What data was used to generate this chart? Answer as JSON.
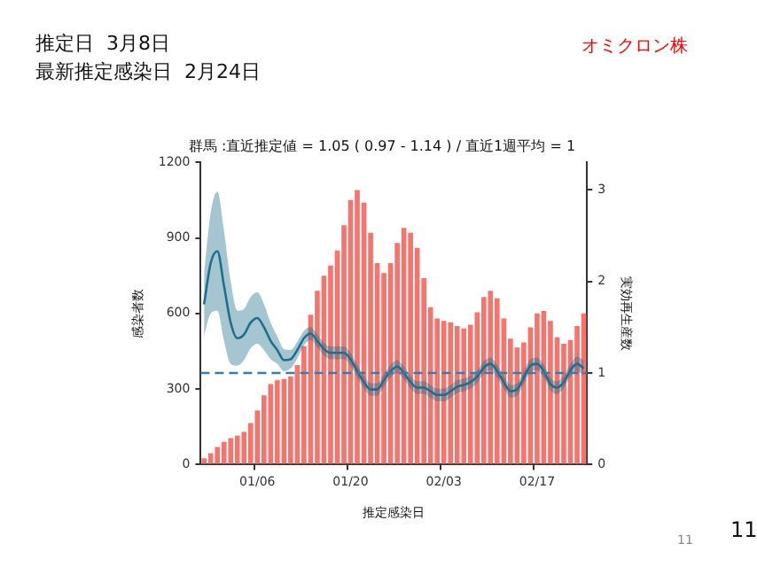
{
  "chart_data": {
    "type": "bar",
    "title": "群馬 :直近推定値 = 1.05 ( 0.97 - 1.14 ) / 直近1週平均 = 1",
    "xlabel": "推定感染日",
    "ylabel": "感染者数",
    "y2label": "実効再生産数",
    "annotations": [
      "推定日  3月8日",
      "最新推定感染日  2月24日",
      "オミクロン株",
      "11",
      "11"
    ],
    "categories": [
      null,
      null,
      null,
      null,
      null,
      null,
      null,
      null,
      "01/06",
      null,
      null,
      null,
      null,
      null,
      null,
      null,
      null,
      null,
      null,
      null,
      null,
      null,
      "01/20",
      null,
      null,
      null,
      null,
      null,
      null,
      null,
      null,
      null,
      null,
      null,
      null,
      null,
      "02/03",
      null,
      null,
      null,
      null,
      null,
      null,
      null,
      null,
      null,
      null,
      null,
      null,
      null,
      "02/17",
      null,
      null,
      null,
      null,
      null,
      null,
      null
    ],
    "series": [
      {
        "color": "#f4756e",
        "values": [
          25,
          45,
          70,
          90,
          105,
          115,
          130,
          165,
          215,
          275,
          320,
          335,
          340,
          350,
          395,
          470,
          595,
          690,
          750,
          790,
          850,
          950,
          1050,
          1090,
          1040,
          920,
          800,
          760,
          800,
          880,
          940,
          920,
          860,
          740,
          625,
          580,
          570,
          565,
          550,
          540,
          555,
          605,
          665,
          690,
          660,
          580,
          500,
          465,
          485,
          545,
          600,
          610,
          570,
          505,
          480,
          495,
          550,
          600
        ]
      },
      {
        "type": "line",
        "axis": "y2",
        "color": "#1f6e8c",
        "values": [
          1.75,
          2.2,
          2.33,
          1.95,
          1.55,
          1.38,
          1.42,
          1.55,
          1.6,
          1.5,
          1.35,
          1.25,
          1.14,
          1.15,
          1.25,
          1.38,
          1.43,
          1.35,
          1.26,
          1.22,
          1.22,
          1.22,
          1.15,
          1.02,
          0.9,
          0.82,
          0.82,
          0.92,
          1.02,
          1.07,
          1.0,
          0.9,
          0.84,
          0.84,
          0.8,
          0.76,
          0.76,
          0.8,
          0.85,
          0.87,
          0.9,
          0.96,
          1.06,
          1.1,
          1.02,
          0.9,
          0.8,
          0.82,
          0.95,
          1.08,
          1.1,
          1.02,
          0.88,
          0.84,
          0.9,
          1.03,
          1.1,
          1.05
        ],
        "lower": [
          1.4,
          1.65,
          1.68,
          1.35,
          1.1,
          1.08,
          1.14,
          1.27,
          1.32,
          1.25,
          1.15,
          1.1,
          1.02,
          1.05,
          1.16,
          1.3,
          1.36,
          1.28,
          1.19,
          1.15,
          1.15,
          1.15,
          1.08,
          0.95,
          0.83,
          0.75,
          0.75,
          0.85,
          0.95,
          1.0,
          0.93,
          0.83,
          0.77,
          0.77,
          0.73,
          0.69,
          0.69,
          0.73,
          0.78,
          0.8,
          0.83,
          0.89,
          0.99,
          1.03,
          0.95,
          0.83,
          0.73,
          0.75,
          0.88,
          1.01,
          1.03,
          0.95,
          0.81,
          0.77,
          0.83,
          0.96,
          1.02,
          0.97
        ],
        "upper": [
          2.1,
          2.75,
          2.98,
          2.55,
          2.0,
          1.68,
          1.7,
          1.83,
          1.88,
          1.75,
          1.55,
          1.4,
          1.26,
          1.25,
          1.34,
          1.46,
          1.5,
          1.42,
          1.33,
          1.29,
          1.29,
          1.29,
          1.22,
          1.09,
          0.97,
          0.89,
          0.89,
          0.99,
          1.09,
          1.14,
          1.07,
          0.97,
          0.91,
          0.91,
          0.87,
          0.83,
          0.83,
          0.87,
          0.92,
          0.94,
          0.97,
          1.03,
          1.13,
          1.17,
          1.09,
          0.97,
          0.87,
          0.89,
          1.02,
          1.15,
          1.17,
          1.09,
          0.95,
          0.91,
          0.97,
          1.1,
          1.18,
          1.14
        ]
      }
    ],
    "ylim": [
      0,
      1200
    ],
    "yticks": [
      0,
      300,
      600,
      900,
      1200
    ],
    "y2lim": [
      0,
      3.3
    ],
    "y2ticks": [
      0,
      1,
      2,
      3
    ],
    "ref_lines": [
      {
        "axis": "y2",
        "value": 1,
        "color": "#3a7ca5",
        "line_style": "dashed"
      }
    ],
    "grid": false,
    "legend": false
  }
}
